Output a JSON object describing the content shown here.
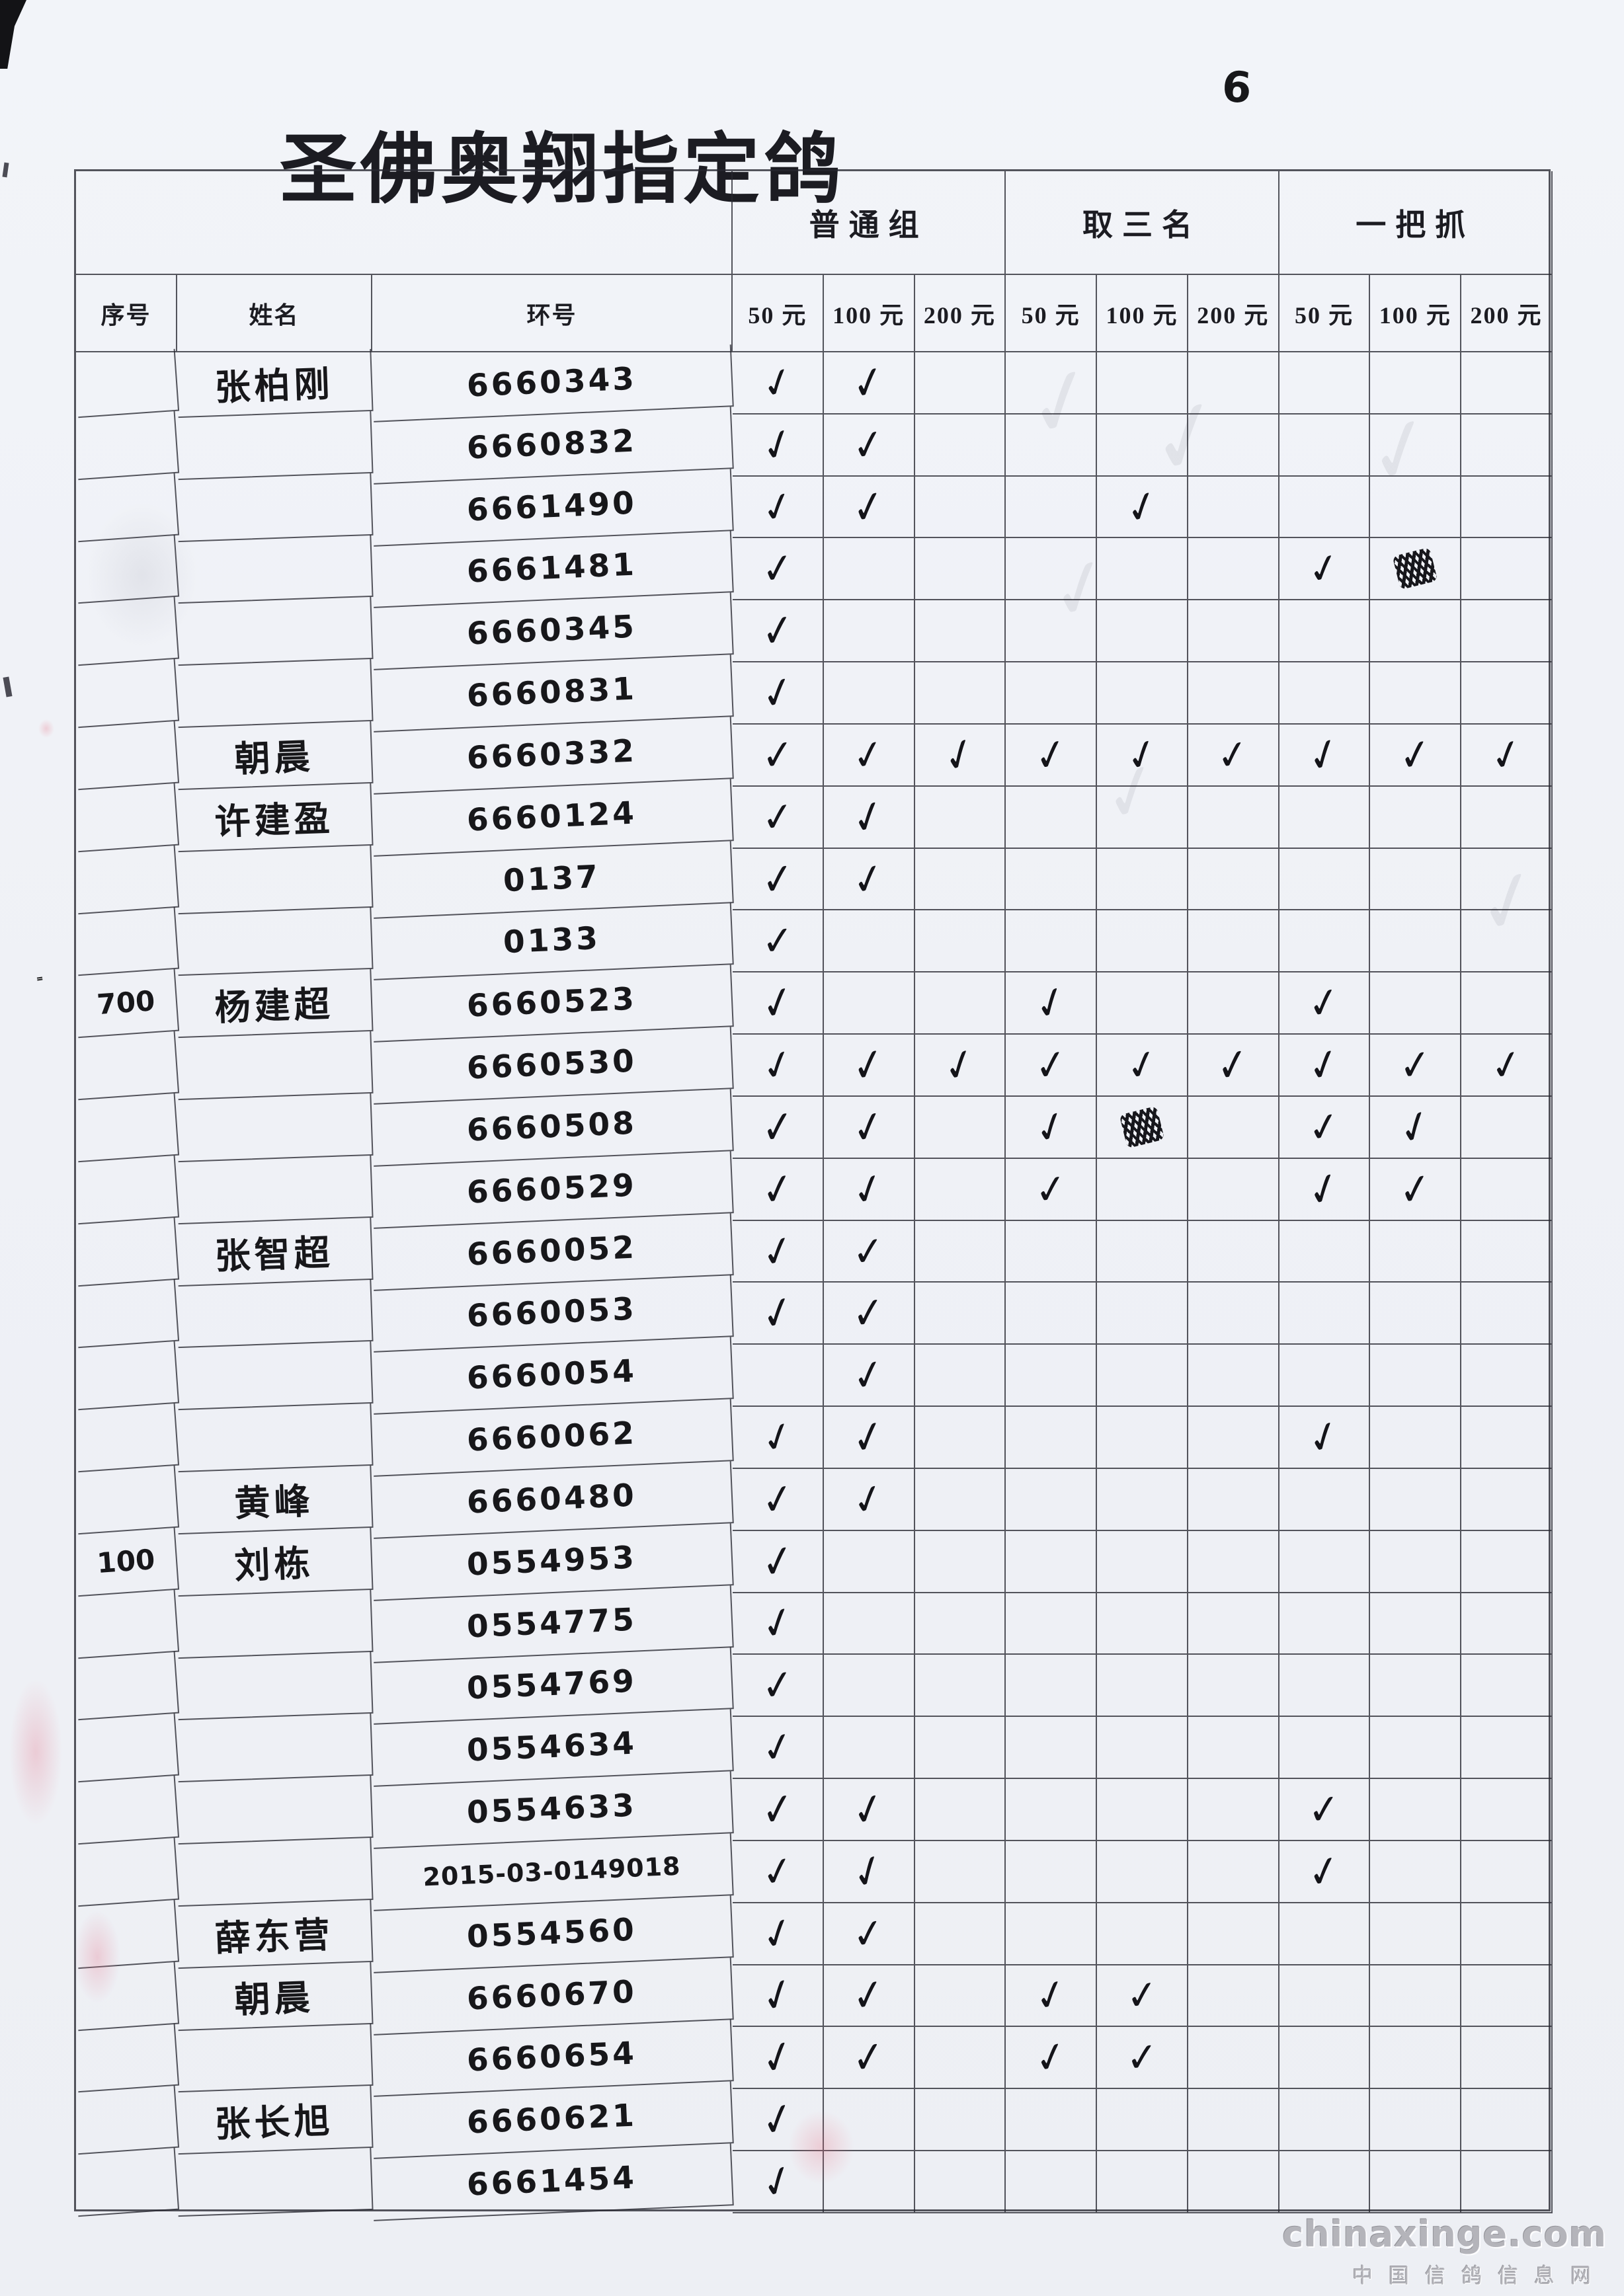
{
  "page": {
    "title": "圣佛奥翔指定鸽",
    "page_number": "6",
    "margin_note": "ч700",
    "watermark": {
      "line1": "chinaxinge.com",
      "line2": "中国信鸽信息网"
    }
  },
  "colors": {
    "paper": "#f0f2f7",
    "ink": "#17171a",
    "printed_text": "#1c1c22",
    "grid_line": "#26262f",
    "watermark_gray": "#b4b4ba",
    "smudge_pink": "#e4768c"
  },
  "table": {
    "fixed_headers": [
      "序号",
      "姓名",
      "环号"
    ],
    "groups": [
      "普通组",
      "取三名",
      "一把抓"
    ],
    "price_headers": [
      "50 元",
      "100 元",
      "200 元"
    ],
    "mark_legend": {
      "v": "check",
      "s": "scribbled-out"
    },
    "rows": [
      {
        "serial": "",
        "name": "张柏刚",
        "ring": "6660343",
        "marks": [
          "v",
          "v",
          "",
          "",
          "",
          "",
          "",
          "",
          ""
        ]
      },
      {
        "serial": "",
        "name": "",
        "ring": "6660832",
        "marks": [
          "v",
          "v",
          "",
          "",
          "",
          "",
          "",
          "",
          ""
        ]
      },
      {
        "serial": "",
        "name": "",
        "ring": "6661490",
        "marks": [
          "v",
          "v",
          "",
          "",
          "v",
          "",
          "",
          "",
          ""
        ]
      },
      {
        "serial": "",
        "name": "",
        "ring": "6661481",
        "marks": [
          "v",
          "",
          "",
          "",
          "",
          "",
          "v",
          "s",
          ""
        ]
      },
      {
        "serial": "",
        "name": "",
        "ring": "6660345",
        "marks": [
          "v",
          "",
          "",
          "",
          "",
          "",
          "",
          "",
          ""
        ]
      },
      {
        "serial": "",
        "name": "",
        "ring": "6660831",
        "marks": [
          "v",
          "",
          "",
          "",
          "",
          "",
          "",
          "",
          ""
        ]
      },
      {
        "serial": "",
        "name": "朝晨",
        "ring": "6660332",
        "marks": [
          "v",
          "v",
          "v",
          "v",
          "v",
          "v",
          "v",
          "v",
          "v"
        ]
      },
      {
        "serial": "",
        "name": "许建盈",
        "ring": "6660124",
        "marks": [
          "v",
          "v",
          "",
          "",
          "",
          "",
          "",
          "",
          ""
        ]
      },
      {
        "serial": "",
        "name": "",
        "ring": "0137",
        "marks": [
          "v",
          "v",
          "",
          "",
          "",
          "",
          "",
          "",
          ""
        ]
      },
      {
        "serial": "",
        "name": "",
        "ring": "0133",
        "marks": [
          "v",
          "",
          "",
          "",
          "",
          "",
          "",
          "",
          ""
        ]
      },
      {
        "serial": "700",
        "name": "杨建超",
        "ring": "6660523",
        "marks": [
          "v",
          "",
          "",
          "v",
          "",
          "",
          "v",
          "",
          ""
        ]
      },
      {
        "serial": "",
        "name": "",
        "ring": "6660530",
        "marks": [
          "v",
          "v",
          "v",
          "v",
          "v",
          "v",
          "v",
          "v",
          "v"
        ]
      },
      {
        "serial": "",
        "name": "",
        "ring": "6660508",
        "marks": [
          "v",
          "v",
          "",
          "v",
          "s",
          "",
          "v",
          "v",
          ""
        ]
      },
      {
        "serial": "",
        "name": "",
        "ring": "6660529",
        "marks": [
          "v",
          "v",
          "",
          "v",
          "",
          "",
          "v",
          "v",
          ""
        ]
      },
      {
        "serial": "",
        "name": "张智超",
        "ring": "6660052",
        "marks": [
          "v",
          "v",
          "",
          "",
          "",
          "",
          "",
          "",
          ""
        ]
      },
      {
        "serial": "",
        "name": "",
        "ring": "6660053",
        "marks": [
          "v",
          "v",
          "",
          "",
          "",
          "",
          "",
          "",
          ""
        ]
      },
      {
        "serial": "",
        "name": "",
        "ring": "6660054",
        "marks": [
          "",
          "v",
          "",
          "",
          "",
          "",
          "",
          "",
          ""
        ]
      },
      {
        "serial": "",
        "name": "",
        "ring": "6660062",
        "marks": [
          "v",
          "v",
          "",
          "",
          "",
          "",
          "v",
          "",
          ""
        ]
      },
      {
        "serial": "",
        "name": "黄峰",
        "ring": "6660480",
        "marks": [
          "v",
          "v",
          "",
          "",
          "",
          "",
          "",
          "",
          ""
        ]
      },
      {
        "serial": "100",
        "name": "刘栋",
        "ring": "0554953",
        "marks": [
          "v",
          "",
          "",
          "",
          "",
          "",
          "",
          "",
          ""
        ]
      },
      {
        "serial": "",
        "name": "",
        "ring": "0554775",
        "marks": [
          "v",
          "",
          "",
          "",
          "",
          "",
          "",
          "",
          ""
        ]
      },
      {
        "serial": "",
        "name": "",
        "ring": "0554769",
        "marks": [
          "v",
          "",
          "",
          "",
          "",
          "",
          "",
          "",
          ""
        ]
      },
      {
        "serial": "",
        "name": "",
        "ring": "0554634",
        "marks": [
          "v",
          "",
          "",
          "",
          "",
          "",
          "",
          "",
          ""
        ]
      },
      {
        "serial": "",
        "name": "",
        "ring": "0554633",
        "marks": [
          "v",
          "v",
          "",
          "",
          "",
          "",
          "v",
          "",
          ""
        ]
      },
      {
        "serial": "",
        "name": "",
        "ring": "2015-03-0149018",
        "marks": [
          "v",
          "v",
          "",
          "",
          "",
          "",
          "v",
          "",
          ""
        ]
      },
      {
        "serial": "",
        "name": "薛东营",
        "ring": "0554560",
        "marks": [
          "v",
          "v",
          "",
          "",
          "",
          "",
          "",
          "",
          ""
        ]
      },
      {
        "serial": "",
        "name": "朝晨",
        "ring": "6660670",
        "marks": [
          "v",
          "v",
          "",
          "v",
          "v",
          "",
          "",
          "",
          ""
        ]
      },
      {
        "serial": "",
        "name": "",
        "ring": "6660654",
        "marks": [
          "v",
          "v",
          "",
          "v",
          "v",
          "",
          "",
          "",
          ""
        ]
      },
      {
        "serial": "",
        "name": "张长旭",
        "ring": "6660621",
        "marks": [
          "v",
          "",
          "",
          "",
          "",
          "",
          "",
          "",
          ""
        ]
      },
      {
        "serial": "",
        "name": "",
        "ring": "6661454",
        "marks": [
          "v",
          "",
          "",
          "",
          "",
          "",
          "",
          "",
          ""
        ]
      }
    ]
  }
}
